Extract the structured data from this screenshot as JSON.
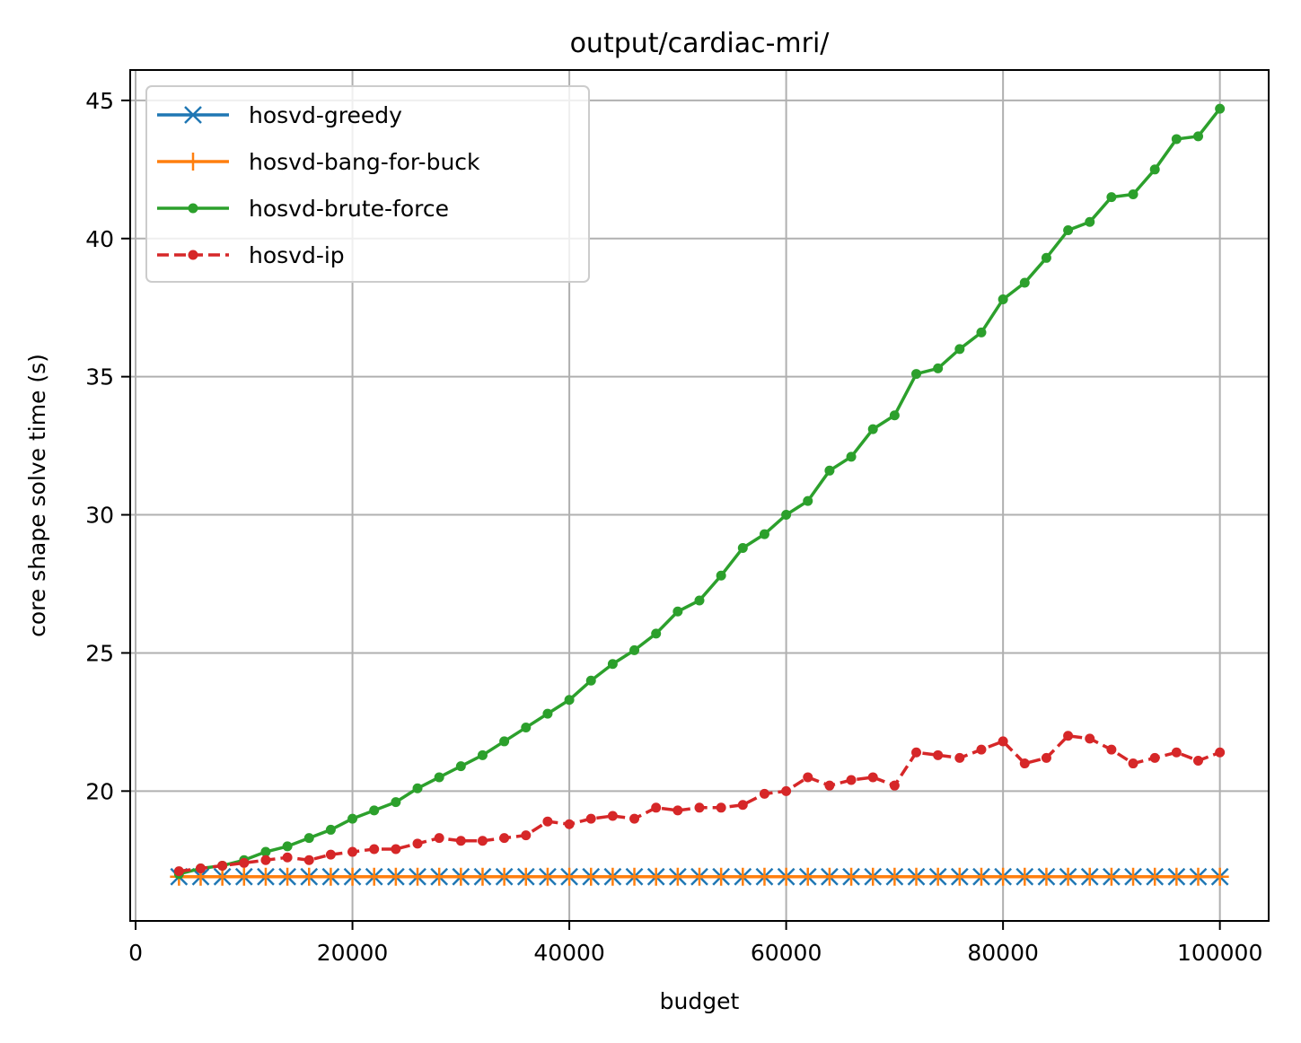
{
  "chart_data": {
    "type": "line",
    "title": "output/cardiac-mri/",
    "xlabel": "budget",
    "ylabel": "core shape solve time (s)",
    "xlim": [
      -500,
      104500
    ],
    "ylim": [
      15.3,
      46.1
    ],
    "grid": true,
    "legend_position": "top-left",
    "xticks": [
      0,
      20000,
      40000,
      60000,
      80000,
      100000
    ],
    "xtick_labels": [
      "0",
      "20000",
      "40000",
      "60000",
      "80000",
      "100000"
    ],
    "yticks": [
      20,
      25,
      30,
      35,
      40,
      45
    ],
    "ytick_labels": [
      "20",
      "25",
      "30",
      "35",
      "40",
      "45"
    ],
    "x": [
      4000,
      6000,
      8000,
      10000,
      12000,
      14000,
      16000,
      18000,
      20000,
      22000,
      24000,
      26000,
      28000,
      30000,
      32000,
      34000,
      36000,
      38000,
      40000,
      42000,
      44000,
      46000,
      48000,
      50000,
      52000,
      54000,
      56000,
      58000,
      60000,
      62000,
      64000,
      66000,
      68000,
      70000,
      72000,
      74000,
      76000,
      78000,
      80000,
      82000,
      84000,
      86000,
      88000,
      90000,
      92000,
      94000,
      96000,
      98000,
      100000
    ],
    "series": [
      {
        "name": "hosvd-greedy",
        "color": "#1f77b4",
        "marker": "x",
        "linestyle": "solid",
        "values": [
          16.9,
          16.9,
          16.9,
          16.9,
          16.9,
          16.9,
          16.9,
          16.9,
          16.9,
          16.9,
          16.9,
          16.9,
          16.9,
          16.9,
          16.9,
          16.9,
          16.9,
          16.9,
          16.9,
          16.9,
          16.9,
          16.9,
          16.9,
          16.9,
          16.9,
          16.9,
          16.9,
          16.9,
          16.9,
          16.9,
          16.9,
          16.9,
          16.9,
          16.9,
          16.9,
          16.9,
          16.9,
          16.9,
          16.9,
          16.9,
          16.9,
          16.9,
          16.9,
          16.9,
          16.9,
          16.9,
          16.9,
          16.9,
          16.9
        ]
      },
      {
        "name": "hosvd-bang-for-buck",
        "color": "#ff7f0e",
        "marker": "+",
        "linestyle": "solid",
        "values": [
          16.9,
          16.9,
          16.9,
          16.9,
          16.9,
          16.9,
          16.9,
          16.9,
          16.9,
          16.9,
          16.9,
          16.9,
          16.9,
          16.9,
          16.9,
          16.9,
          16.9,
          16.9,
          16.9,
          16.9,
          16.9,
          16.9,
          16.9,
          16.9,
          16.9,
          16.9,
          16.9,
          16.9,
          16.9,
          16.9,
          16.9,
          16.9,
          16.9,
          16.9,
          16.9,
          16.9,
          16.9,
          16.9,
          16.9,
          16.9,
          16.9,
          16.9,
          16.9,
          16.9,
          16.9,
          16.9,
          16.9,
          16.9,
          16.9
        ]
      },
      {
        "name": "hosvd-brute-force",
        "color": "#2ca02c",
        "marker": "dot",
        "linestyle": "solid",
        "values": [
          17.0,
          17.2,
          17.3,
          17.5,
          17.8,
          18.0,
          18.3,
          18.6,
          19.0,
          19.3,
          19.6,
          20.1,
          20.5,
          20.9,
          21.3,
          21.8,
          22.3,
          22.8,
          23.3,
          24.0,
          24.6,
          25.1,
          25.7,
          26.5,
          26.9,
          27.8,
          28.8,
          29.3,
          30.0,
          30.5,
          31.6,
          32.1,
          33.1,
          33.6,
          35.1,
          35.3,
          36.0,
          36.6,
          37.8,
          38.4,
          39.3,
          40.3,
          40.6,
          41.5,
          41.6,
          42.5,
          43.6,
          43.7,
          44.7
        ]
      },
      {
        "name": "hosvd-ip",
        "color": "#d62728",
        "marker": "dot",
        "linestyle": "dashed",
        "values": [
          17.1,
          17.2,
          17.3,
          17.4,
          17.5,
          17.6,
          17.5,
          17.7,
          17.8,
          17.9,
          17.9,
          18.1,
          18.3,
          18.2,
          18.2,
          18.3,
          18.4,
          18.9,
          18.8,
          19.0,
          19.1,
          19.0,
          19.4,
          19.3,
          19.4,
          19.4,
          19.5,
          19.9,
          20.0,
          20.5,
          20.2,
          20.4,
          20.5,
          20.2,
          21.4,
          21.3,
          21.2,
          21.5,
          21.8,
          21.0,
          21.2,
          22.0,
          21.9,
          21.5,
          21.0,
          21.2,
          21.4,
          21.1,
          21.4
        ]
      }
    ]
  }
}
